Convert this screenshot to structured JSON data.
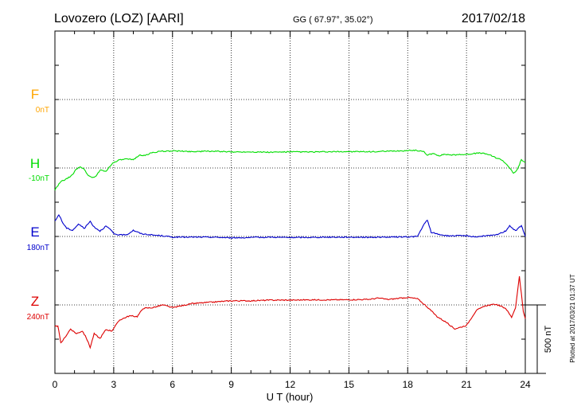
{
  "header": {
    "station": "Lovozero (LOZ)  [AARI]",
    "coords": "GG ( 67.97°,  35.02°)",
    "date": "2017/02/18"
  },
  "footer": {
    "plotted": "Plotted at 2017/03/21 01:37 UT",
    "scale_label": "500 nT"
  },
  "chart_data": {
    "type": "line",
    "xlabel": "U T (hour)",
    "xlim": [
      0,
      24
    ],
    "xticks": [
      "0",
      "3",
      "6",
      "9",
      "12",
      "15",
      "18",
      "21",
      "24"
    ],
    "scale_bar_nT": 500,
    "grid": true,
    "series": [
      {
        "name": "F",
        "offset": "0nT",
        "color": "#ffa500",
        "points": []
      },
      {
        "name": "H",
        "offset": "-10nT",
        "color": "#00dd00",
        "points": [
          [
            0,
            -160
          ],
          [
            0.3,
            -100
          ],
          [
            0.6,
            -80
          ],
          [
            0.9,
            -50
          ],
          [
            1.1,
            -5
          ],
          [
            1.3,
            10
          ],
          [
            1.5,
            -10
          ],
          [
            1.7,
            -55
          ],
          [
            1.9,
            -70
          ],
          [
            2.1,
            -60
          ],
          [
            2.3,
            -15
          ],
          [
            2.6,
            -25
          ],
          [
            2.9,
            30
          ],
          [
            3.2,
            55
          ],
          [
            3.6,
            65
          ],
          [
            4.0,
            60
          ],
          [
            4.3,
            95
          ],
          [
            4.6,
            90
          ],
          [
            4.9,
            110
          ],
          [
            5.3,
            120
          ],
          [
            6,
            125
          ],
          [
            7,
            120
          ],
          [
            8,
            123
          ],
          [
            9,
            117
          ],
          [
            10,
            118
          ],
          [
            11,
            115
          ],
          [
            12,
            118
          ],
          [
            13,
            117
          ],
          [
            14,
            118
          ],
          [
            15,
            120
          ],
          [
            16,
            118
          ],
          [
            17,
            122
          ],
          [
            18,
            127
          ],
          [
            18.4,
            130
          ],
          [
            18.8,
            120
          ],
          [
            19.0,
            95
          ],
          [
            19.3,
            105
          ],
          [
            19.6,
            90
          ],
          [
            19.9,
            100
          ],
          [
            20.3,
            95
          ],
          [
            21,
            100
          ],
          [
            21.7,
            110
          ],
          [
            22.1,
            100
          ],
          [
            22.5,
            75
          ],
          [
            22.8,
            60
          ],
          [
            23.1,
            20
          ],
          [
            23.4,
            -40
          ],
          [
            23.6,
            -10
          ],
          [
            23.8,
            60
          ],
          [
            24,
            40
          ]
        ]
      },
      {
        "name": "E",
        "offset": "180nT",
        "color": "#0000cc",
        "points": [
          [
            0,
            110
          ],
          [
            0.2,
            160
          ],
          [
            0.4,
            100
          ],
          [
            0.6,
            60
          ],
          [
            0.9,
            45
          ],
          [
            1.2,
            90
          ],
          [
            1.5,
            60
          ],
          [
            1.8,
            110
          ],
          [
            2.0,
            70
          ],
          [
            2.3,
            40
          ],
          [
            2.6,
            75
          ],
          [
            2.8,
            55
          ],
          [
            3.0,
            20
          ],
          [
            3.3,
            10
          ],
          [
            3.7,
            15
          ],
          [
            4.0,
            45
          ],
          [
            4.4,
            20
          ],
          [
            5.0,
            10
          ],
          [
            5.5,
            5
          ],
          [
            6,
            -5
          ],
          [
            7,
            -5
          ],
          [
            8,
            -5
          ],
          [
            9,
            -10
          ],
          [
            10,
            -8
          ],
          [
            11,
            -5
          ],
          [
            12,
            -8
          ],
          [
            13,
            -7
          ],
          [
            14,
            -5
          ],
          [
            15,
            -5
          ],
          [
            16,
            -6
          ],
          [
            17,
            -5
          ],
          [
            18,
            -3
          ],
          [
            18.5,
            0
          ],
          [
            18.8,
            80
          ],
          [
            19.0,
            120
          ],
          [
            19.2,
            30
          ],
          [
            19.6,
            15
          ],
          [
            20,
            5
          ],
          [
            21,
            5
          ],
          [
            21.5,
            -3
          ],
          [
            22,
            5
          ],
          [
            22.5,
            10
          ],
          [
            23,
            40
          ],
          [
            23.2,
            80
          ],
          [
            23.5,
            40
          ],
          [
            23.8,
            80
          ],
          [
            24,
            0
          ]
        ]
      },
      {
        "name": "Z",
        "offset": "240nT",
        "color": "#dd0000",
        "points": [
          [
            0,
            -160
          ],
          [
            0.15,
            -150
          ],
          [
            0.3,
            -280
          ],
          [
            0.5,
            -240
          ],
          [
            0.8,
            -175
          ],
          [
            1.1,
            -210
          ],
          [
            1.4,
            -190
          ],
          [
            1.6,
            -240
          ],
          [
            1.8,
            -310
          ],
          [
            2.0,
            -210
          ],
          [
            2.3,
            -245
          ],
          [
            2.6,
            -180
          ],
          [
            2.9,
            -190
          ],
          [
            3.3,
            -110
          ],
          [
            3.8,
            -80
          ],
          [
            4.2,
            -85
          ],
          [
            4.5,
            -25
          ],
          [
            5.0,
            -20
          ],
          [
            5.5,
            0
          ],
          [
            6,
            -20
          ],
          [
            7,
            10
          ],
          [
            8,
            20
          ],
          [
            9,
            30
          ],
          [
            10,
            30
          ],
          [
            11,
            35
          ],
          [
            12,
            35
          ],
          [
            13,
            37
          ],
          [
            14,
            37
          ],
          [
            15,
            38
          ],
          [
            16,
            40
          ],
          [
            16.5,
            50
          ],
          [
            17,
            40
          ],
          [
            18,
            55
          ],
          [
            18.5,
            45
          ],
          [
            19,
            -15
          ],
          [
            19.5,
            -85
          ],
          [
            20,
            -130
          ],
          [
            20.4,
            -175
          ],
          [
            21,
            -150
          ],
          [
            21.5,
            -40
          ],
          [
            22,
            -5
          ],
          [
            22.5,
            5
          ],
          [
            23,
            -25
          ],
          [
            23.3,
            -90
          ],
          [
            23.5,
            -20
          ],
          [
            23.7,
            210
          ],
          [
            23.9,
            -50
          ],
          [
            24,
            -100
          ]
        ]
      }
    ]
  }
}
